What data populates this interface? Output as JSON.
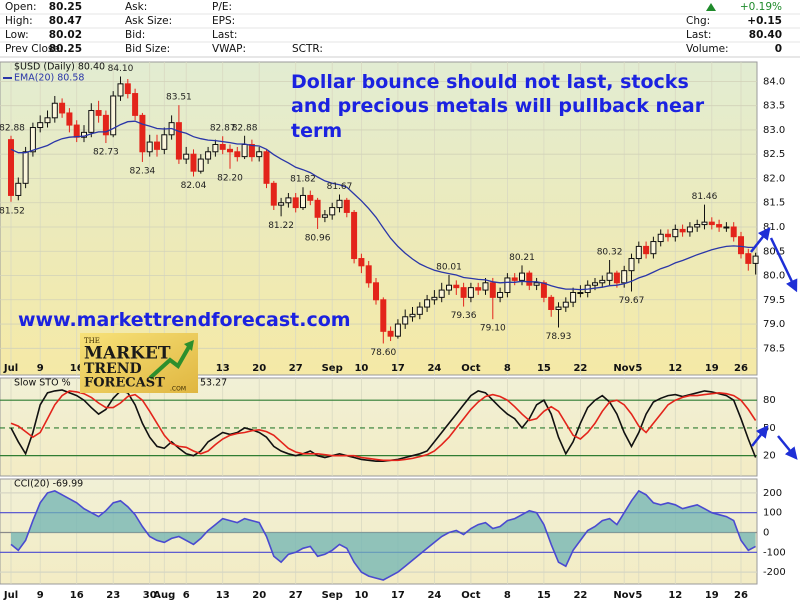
{
  "header": {
    "columns": [
      {
        "labels": [
          "Open:",
          "High:",
          "Low:",
          "Prev Close:"
        ],
        "values": [
          "80.25",
          "80.47",
          "80.02",
          "80.25"
        ]
      },
      {
        "labels": [
          "Ask:",
          "Ask Size:",
          "Bid:",
          "Bid Size:"
        ]
      },
      {
        "labels": [
          "P/E:",
          "EPS:",
          "Last:",
          "VWAP:"
        ]
      }
    ],
    "sctr": "SCTR:",
    "change": "+0.19%",
    "summary": {
      "labels": [
        "Chg:",
        "Last:",
        "Volume:"
      ],
      "values": [
        "+0.15",
        "80.40",
        "0"
      ]
    }
  },
  "overlay": {
    "headline": [
      "Dollar bounce should not last, stocks",
      "and precious metals will pullback near",
      "term"
    ],
    "website": "www.markettrendforecast.com",
    "logo": [
      "THE",
      "MARKET",
      "TREND",
      "FORECAST",
      ".COM"
    ]
  },
  "chart_data": [
    {
      "type": "candlestick",
      "title": "$USD (Daily) 80.40",
      "categories": [
        "Jul",
        null,
        null,
        null,
        "9",
        null,
        null,
        null,
        null,
        "16",
        null,
        null,
        null,
        null,
        "23",
        null,
        null,
        null,
        null,
        "30",
        null,
        "Aug",
        null,
        null,
        "6",
        null,
        null,
        null,
        null,
        "13",
        null,
        null,
        null,
        null,
        "20",
        null,
        null,
        null,
        null,
        "27",
        null,
        null,
        null,
        null,
        "Sep",
        null,
        null,
        null,
        "10",
        null,
        null,
        null,
        null,
        "17",
        null,
        null,
        null,
        null,
        "24",
        null,
        null,
        null,
        null,
        "Oct",
        null,
        null,
        null,
        null,
        "8",
        null,
        null,
        null,
        null,
        "15",
        null,
        null,
        null,
        null,
        "22",
        null,
        null,
        null,
        null,
        null,
        "Nov",
        null,
        "5",
        null,
        null,
        null,
        null,
        "12",
        null,
        null,
        null,
        null,
        "19",
        null,
        null,
        null,
        "26",
        null,
        null
      ],
      "open": [
        82.8,
        81.65,
        81.9,
        82.55,
        83.05,
        83.15,
        83.25,
        83.55,
        83.35,
        83.1,
        82.85,
        82.95,
        83.4,
        83.3,
        82.9,
        83.7,
        83.95,
        83.75,
        83.3,
        82.55,
        82.75,
        82.6,
        82.9,
        83.15,
        82.4,
        82.5,
        82.15,
        82.4,
        82.55,
        82.7,
        82.6,
        82.55,
        82.45,
        82.7,
        82.45,
        82.55,
        81.9,
        81.45,
        81.5,
        81.6,
        81.4,
        81.65,
        81.55,
        81.2,
        81.25,
        81.4,
        81.55,
        81.3,
        80.35,
        80.2,
        79.85,
        79.5,
        78.85,
        78.75,
        79.0,
        79.15,
        79.2,
        79.35,
        79.5,
        79.55,
        79.7,
        79.8,
        79.75,
        79.55,
        79.75,
        79.7,
        79.85,
        79.55,
        79.65,
        79.95,
        79.9,
        80.05,
        79.8,
        79.85,
        79.55,
        79.3,
        79.35,
        79.45,
        79.65,
        79.65,
        79.8,
        79.85,
        79.9,
        80.05,
        79.85,
        80.1,
        80.35,
        80.6,
        80.45,
        80.7,
        80.85,
        80.8,
        80.95,
        80.9,
        81.0,
        81.05,
        81.1,
        81.05,
        81.0,
        81.0,
        80.8,
        80.45,
        80.25
      ],
      "high": [
        82.88,
        82.02,
        82.65,
        83.15,
        83.3,
        83.4,
        83.7,
        83.65,
        83.45,
        83.2,
        83.1,
        83.55,
        83.6,
        83.4,
        83.8,
        84.1,
        84.05,
        83.85,
        83.35,
        82.9,
        82.9,
        83.05,
        83.3,
        83.51,
        82.65,
        82.6,
        82.5,
        82.65,
        82.8,
        82.87,
        82.7,
        82.65,
        82.88,
        82.8,
        82.65,
        82.6,
        81.95,
        81.6,
        81.7,
        81.7,
        81.82,
        81.75,
        81.6,
        81.35,
        81.5,
        81.67,
        81.6,
        81.35,
        80.45,
        80.3,
        79.95,
        79.55,
        78.95,
        79.1,
        79.3,
        79.35,
        79.45,
        79.6,
        79.7,
        79.85,
        80.01,
        79.9,
        79.85,
        79.85,
        79.85,
        79.95,
        79.95,
        79.75,
        80.05,
        80.05,
        80.21,
        80.1,
        79.95,
        79.9,
        79.6,
        79.45,
        79.55,
        79.75,
        79.8,
        79.9,
        79.95,
        80.0,
        80.32,
        80.1,
        80.2,
        80.45,
        80.7,
        80.7,
        80.8,
        80.95,
        80.95,
        81.05,
        81.05,
        81.1,
        81.15,
        81.46,
        81.2,
        81.15,
        81.1,
        81.1,
        80.9,
        80.55,
        80.47
      ],
      "low": [
        81.52,
        81.55,
        81.8,
        82.45,
        82.95,
        83.05,
        83.15,
        83.25,
        82.95,
        82.75,
        82.75,
        82.85,
        83.15,
        82.73,
        82.85,
        83.6,
        83.65,
        83.2,
        82.34,
        82.45,
        82.45,
        82.5,
        82.8,
        82.3,
        82.3,
        82.04,
        82.1,
        82.3,
        82.45,
        82.5,
        82.2,
        82.35,
        82.4,
        82.35,
        82.35,
        81.8,
        81.35,
        81.22,
        81.4,
        81.3,
        81.35,
        81.45,
        80.96,
        81.1,
        81.15,
        81.3,
        81.2,
        80.25,
        80.05,
        79.75,
        79.4,
        78.6,
        78.65,
        78.7,
        78.9,
        79.05,
        79.1,
        79.25,
        79.4,
        79.45,
        79.6,
        79.6,
        79.36,
        79.45,
        79.6,
        79.6,
        79.1,
        79.45,
        79.55,
        79.8,
        79.8,
        79.7,
        79.7,
        79.45,
        79.15,
        78.93,
        79.25,
        79.35,
        79.55,
        79.55,
        79.7,
        79.75,
        79.8,
        79.75,
        79.75,
        79.67,
        80.25,
        80.35,
        80.35,
        80.6,
        80.7,
        80.7,
        80.8,
        80.8,
        80.9,
        80.95,
        80.95,
        80.9,
        80.9,
        80.7,
        80.35,
        80.1,
        80.02
      ],
      "close": [
        81.65,
        81.9,
        82.55,
        83.05,
        83.15,
        83.25,
        83.55,
        83.35,
        83.1,
        82.85,
        82.95,
        83.4,
        83.3,
        82.9,
        83.7,
        83.95,
        83.75,
        83.3,
        82.55,
        82.75,
        82.6,
        82.9,
        83.15,
        82.4,
        82.5,
        82.15,
        82.4,
        82.55,
        82.7,
        82.6,
        82.55,
        82.45,
        82.7,
        82.45,
        82.55,
        81.9,
        81.45,
        81.5,
        81.6,
        81.4,
        81.65,
        81.55,
        81.2,
        81.25,
        81.4,
        81.55,
        81.3,
        80.35,
        80.2,
        79.85,
        79.5,
        78.85,
        78.75,
        79.0,
        79.15,
        79.2,
        79.35,
        79.5,
        79.55,
        79.7,
        79.8,
        79.75,
        79.55,
        79.75,
        79.7,
        79.85,
        79.55,
        79.65,
        79.95,
        79.9,
        80.05,
        79.8,
        79.85,
        79.55,
        79.3,
        79.35,
        79.45,
        79.65,
        79.65,
        79.8,
        79.85,
        79.9,
        80.05,
        79.85,
        80.1,
        80.35,
        80.6,
        80.45,
        80.7,
        80.85,
        80.8,
        80.95,
        80.9,
        81.0,
        81.05,
        81.1,
        81.05,
        81.0,
        81.0,
        80.8,
        80.45,
        80.25,
        80.4
      ],
      "high_labels": {
        "0": "82.88",
        "15": "84.10",
        "23": "83.51",
        "29": "82.87",
        "32": "82.88",
        "40": "81.82",
        "45": "81.67",
        "60": "80.01",
        "70": "80.21",
        "82": "80.32",
        "95": "81.46"
      },
      "low_labels": {
        "0": "81.52",
        "13": "82.73",
        "18": "82.34",
        "25": "82.04",
        "30": "82.20",
        "37": "81.22",
        "42": "80.96",
        "51": "78.60",
        "62": "79.36",
        "66": "79.10",
        "75": "78.93",
        "85": "79.67"
      },
      "up_color": "#111111",
      "down_color": "#e3241b",
      "series": [
        {
          "name": "EMA(20) 80.58",
          "color": "#2a36a8",
          "values": [
            82.6,
            82.53,
            82.53,
            82.58,
            82.63,
            82.68,
            82.76,
            82.82,
            82.85,
            82.86,
            82.87,
            82.92,
            82.96,
            82.96,
            83.03,
            83.11,
            83.17,
            83.18,
            83.12,
            83.08,
            83.03,
            83.02,
            83.03,
            82.97,
            82.93,
            82.86,
            82.82,
            82.79,
            82.78,
            82.76,
            82.74,
            82.71,
            82.71,
            82.68,
            82.67,
            82.6,
            82.49,
            82.4,
            82.32,
            82.23,
            82.18,
            82.12,
            82.03,
            81.95,
            81.9,
            81.87,
            81.82,
            81.68,
            81.54,
            81.38,
            81.2,
            80.98,
            80.77,
            80.6,
            80.46,
            80.34,
            80.24,
            80.17,
            80.11,
            80.07,
            80.04,
            80.01,
            79.96,
            79.94,
            79.92,
            79.91,
            79.87,
            79.85,
            79.86,
            79.86,
            79.88,
            79.87,
            79.87,
            79.84,
            79.79,
            79.75,
            79.72,
            79.72,
            79.71,
            79.72,
            79.74,
            79.76,
            79.79,
            79.8,
            79.83,
            79.88,
            79.95,
            80.0,
            80.07,
            80.14,
            80.19,
            80.26,
            80.31,
            80.37,
            80.43,
            80.48,
            80.53,
            80.57,
            80.6,
            80.61,
            80.6,
            80.58,
            80.58
          ]
        }
      ],
      "ylim": [
        77.95,
        84.4
      ],
      "yticks": [
        78.5,
        {
          "value": 79,
          "label": "79.0"
        },
        79.5,
        {
          "value": 80,
          "label": "80.0"
        },
        80.5,
        {
          "value": 81,
          "label": "81.0"
        },
        81.5,
        {
          "value": 82,
          "label": "82.0"
        },
        82.5,
        {
          "value": 83,
          "label": "83.0"
        },
        83.5,
        {
          "value": 84,
          "label": "84.0"
        }
      ],
      "grid": true
    },
    {
      "type": "line",
      "title": "Slow STO %",
      "title_value": 53.27,
      "series": [
        {
          "color": "#111111",
          "values": [
            50,
            35,
            22,
            45,
            75,
            88,
            90,
            91,
            88,
            85,
            80,
            72,
            65,
            70,
            82,
            90,
            88,
            75,
            55,
            40,
            30,
            28,
            35,
            28,
            22,
            20,
            25,
            35,
            40,
            45,
            43,
            45,
            50,
            48,
            45,
            40,
            30,
            25,
            22,
            20,
            22,
            25,
            20,
            18,
            20,
            22,
            20,
            18,
            16,
            15,
            14,
            14,
            15,
            16,
            18,
            20,
            22,
            25,
            35,
            45,
            55,
            65,
            75,
            85,
            90,
            88,
            80,
            72,
            65,
            60,
            50,
            60,
            75,
            80,
            65,
            40,
            22,
            35,
            55,
            72,
            80,
            85,
            78,
            65,
            45,
            30,
            45,
            65,
            78,
            82,
            85,
            86,
            84,
            86,
            88,
            90,
            89,
            87,
            85,
            80,
            60,
            38,
            18
          ]
        },
        {
          "color": "#e3241b",
          "values": [
            55,
            52,
            46,
            40,
            45,
            60,
            75,
            85,
            90,
            89,
            87,
            83,
            77,
            72,
            72,
            77,
            84,
            86,
            80,
            68,
            55,
            42,
            33,
            30,
            29,
            25,
            22,
            25,
            32,
            38,
            42,
            44,
            45,
            47,
            48,
            46,
            42,
            35,
            28,
            24,
            22,
            22,
            22,
            21,
            20,
            20,
            20,
            20,
            18,
            17,
            16,
            15,
            15,
            15,
            16,
            17,
            19,
            21,
            25,
            32,
            40,
            50,
            60,
            70,
            78,
            84,
            86,
            84,
            80,
            73,
            65,
            58,
            60,
            68,
            73,
            68,
            55,
            42,
            38,
            45,
            55,
            68,
            78,
            80,
            75,
            65,
            52,
            45,
            55,
            65,
            75,
            80,
            83,
            85,
            85,
            86,
            87,
            88,
            87,
            85,
            80,
            70,
            58
          ]
        }
      ],
      "ylim": [
        -2,
        104
      ],
      "yticks": [
        20,
        50,
        80
      ],
      "grid": true,
      "grid_colors": [
        "#2f7d32",
        "#2f7d32",
        "#2f7d32"
      ],
      "grid_dash": [
        false,
        true,
        false
      ]
    },
    {
      "type": "line",
      "title": "CCI(20) -69.99",
      "series": [
        {
          "color": "#4a4ad0",
          "values": [
            -60,
            -90,
            -40,
            60,
            150,
            200,
            210,
            190,
            170,
            150,
            120,
            100,
            80,
            110,
            150,
            160,
            130,
            90,
            30,
            -20,
            -40,
            -50,
            -30,
            -20,
            -40,
            -60,
            -30,
            10,
            40,
            70,
            60,
            50,
            70,
            60,
            50,
            -20,
            -120,
            -150,
            -110,
            -100,
            -80,
            -70,
            -120,
            -110,
            -90,
            -60,
            -80,
            -150,
            -200,
            -220,
            -230,
            -240,
            -220,
            -200,
            -170,
            -140,
            -110,
            -80,
            -50,
            -20,
            0,
            10,
            -10,
            20,
            40,
            50,
            20,
            30,
            60,
            70,
            90,
            110,
            100,
            40,
            -60,
            -150,
            -170,
            -90,
            -40,
            10,
            30,
            60,
            70,
            40,
            100,
            160,
            210,
            190,
            150,
            140,
            150,
            140,
            120,
            130,
            140,
            120,
            100,
            90,
            80,
            60,
            -40,
            -90,
            -70
          ]
        }
      ],
      "fill_color": "#6fb3b3",
      "ylim": [
        -260,
        270
      ],
      "yticks": [
        200,
        100,
        0,
        -100,
        -200
      ],
      "grid": true,
      "grid_colors": [
        "#d6d6c4",
        "#4a4ad0",
        "#8a8a8a",
        "#4a4ad0",
        "#d6d6c4"
      ],
      "grid_dash": [
        false,
        false,
        false,
        false,
        false
      ]
    }
  ]
}
